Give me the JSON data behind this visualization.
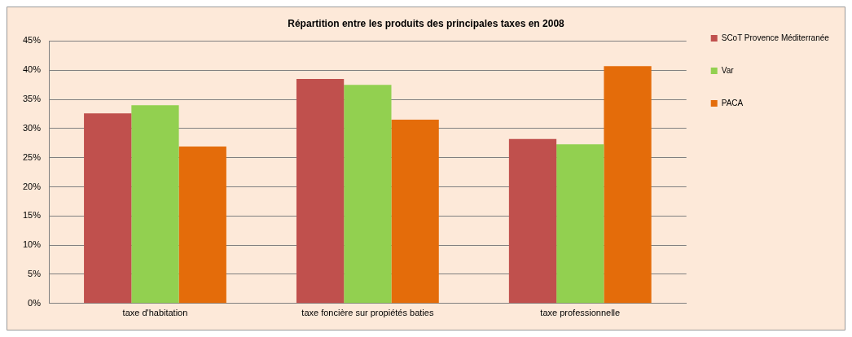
{
  "chart_data": {
    "type": "bar",
    "title": "Répartition entre les produits des principales taxes en 2008",
    "categories": [
      "taxe d'habitation",
      "taxe foncière sur propiétés baties",
      "taxe professionnelle"
    ],
    "series": [
      {
        "name": "SCoT Provence Méditerranée",
        "color": "#c0504d",
        "values": [
          32.6,
          38.5,
          28.2
        ]
      },
      {
        "name": "Var",
        "color": "#92d050",
        "values": [
          34.0,
          37.5,
          27.3
        ]
      },
      {
        "name": "PACA",
        "color": "#e46c0a",
        "values": [
          26.9,
          31.5,
          40.7
        ]
      }
    ],
    "ylim": [
      0,
      45
    ],
    "yticks": [
      {
        "value": 0,
        "label": "0%"
      },
      {
        "value": 5,
        "label": "5%"
      },
      {
        "value": 10,
        "label": "10%"
      },
      {
        "value": 15,
        "label": "15%"
      },
      {
        "value": 20,
        "label": "20%"
      },
      {
        "value": 25,
        "label": "25%"
      },
      {
        "value": 30,
        "label": "30%"
      },
      {
        "value": 35,
        "label": "35%"
      },
      {
        "value": 40,
        "label": "40%"
      },
      {
        "value": 45,
        "label": "45%"
      }
    ],
    "grid": "y",
    "legend": "right"
  }
}
